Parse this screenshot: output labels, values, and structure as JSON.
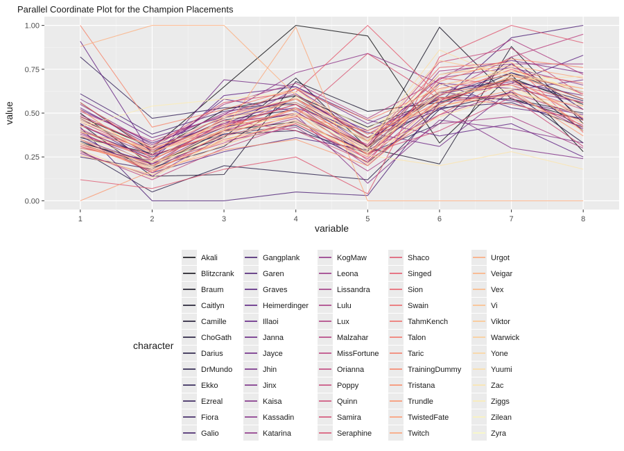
{
  "chart_data": {
    "type": "line",
    "subtype": "parallel-coordinates",
    "title": "Parallel Coordinate Plot for the Champion Placements",
    "xlabel": "variable",
    "ylabel": "value",
    "x": [
      1,
      2,
      3,
      4,
      5,
      6,
      7,
      8
    ],
    "ylim": [
      -0.05,
      1.05
    ],
    "y_ticks": [
      0.0,
      0.25,
      0.5,
      0.75,
      1.0
    ],
    "y_tick_labels": [
      "0.00",
      "0.25",
      "0.50",
      "0.75",
      "1.00"
    ],
    "grid": true,
    "legend_title": "character",
    "legend_position": "bottom",
    "legend_columns": 5,
    "colormap": "magma",
    "series": [
      {
        "name": "Akali",
        "values": [
          0.48,
          0.3,
          0.65,
          1.0,
          0.94,
          0.33,
          0.72,
          0.28
        ]
      },
      {
        "name": "Blitzcrank",
        "values": [
          0.36,
          0.27,
          0.52,
          0.6,
          0.42,
          0.58,
          0.7,
          0.55
        ]
      },
      {
        "name": "Braum",
        "values": [
          0.5,
          0.2,
          0.4,
          0.45,
          0.28,
          0.99,
          0.58,
          0.46
        ]
      },
      {
        "name": "Caitlyn",
        "values": [
          0.33,
          0.22,
          0.36,
          0.7,
          0.3,
          0.21,
          0.88,
          0.44
        ]
      },
      {
        "name": "Camille",
        "values": [
          0.44,
          0.14,
          0.15,
          0.68,
          0.51,
          0.56,
          0.7,
          0.4
        ]
      },
      {
        "name": "ChoGath",
        "values": [
          0.56,
          0.28,
          0.46,
          0.52,
          0.31,
          0.55,
          0.73,
          0.58
        ]
      },
      {
        "name": "Darius",
        "values": [
          0.34,
          0.19,
          0.31,
          0.6,
          0.36,
          0.59,
          0.58,
          0.5
        ]
      },
      {
        "name": "DrMundo",
        "values": [
          0.29,
          0.05,
          0.2,
          0.16,
          0.12,
          0.52,
          0.62,
          0.33
        ]
      },
      {
        "name": "Ekko",
        "values": [
          0.47,
          0.26,
          0.38,
          0.4,
          0.27,
          0.44,
          0.82,
          0.46
        ]
      },
      {
        "name": "Ezreal",
        "values": [
          0.82,
          0.47,
          0.53,
          0.55,
          0.34,
          0.62,
          0.69,
          0.57
        ]
      },
      {
        "name": "Fiora",
        "values": [
          0.25,
          0.18,
          0.38,
          0.43,
          0.22,
          0.53,
          0.56,
          0.42
        ]
      },
      {
        "name": "Galio",
        "values": [
          0.4,
          0.25,
          0.42,
          0.5,
          0.31,
          0.6,
          0.73,
          0.62
        ]
      },
      {
        "name": "Gangplank",
        "values": [
          0.61,
          0.38,
          0.51,
          0.56,
          0.36,
          0.52,
          0.78,
          0.52
        ]
      },
      {
        "name": "Garen",
        "values": [
          0.42,
          0.0,
          0.0,
          0.05,
          0.03,
          0.56,
          0.93,
          1.0
        ]
      },
      {
        "name": "Graves",
        "values": [
          0.37,
          0.16,
          0.28,
          0.36,
          0.29,
          0.67,
          0.53,
          0.47
        ]
      },
      {
        "name": "Heimerdinger",
        "values": [
          0.52,
          0.33,
          0.47,
          0.58,
          0.4,
          0.58,
          0.67,
          0.83
        ]
      },
      {
        "name": "Illaoi",
        "values": [
          0.44,
          0.23,
          0.6,
          0.65,
          0.46,
          0.37,
          0.44,
          0.25
        ]
      },
      {
        "name": "Janna",
        "values": [
          0.91,
          0.26,
          0.58,
          0.51,
          0.26,
          0.62,
          0.57,
          0.49
        ]
      },
      {
        "name": "Jayce",
        "values": [
          0.58,
          0.36,
          0.48,
          0.53,
          0.39,
          0.31,
          0.63,
          0.69
        ]
      },
      {
        "name": "Jhin",
        "values": [
          0.3,
          0.23,
          0.69,
          0.65,
          0.44,
          0.61,
          0.68,
          0.6
        ]
      },
      {
        "name": "Jinx",
        "values": [
          0.53,
          0.31,
          0.44,
          0.58,
          0.31,
          0.72,
          0.8,
          0.73
        ]
      },
      {
        "name": "Kaisa",
        "values": [
          0.35,
          0.21,
          0.41,
          0.64,
          0.38,
          0.53,
          0.3,
          0.24
        ]
      },
      {
        "name": "Kassadin",
        "values": [
          0.39,
          0.21,
          0.45,
          0.49,
          0.1,
          0.46,
          0.41,
          0.33
        ]
      },
      {
        "name": "Katarina",
        "values": [
          0.43,
          0.26,
          0.49,
          0.73,
          0.84,
          0.67,
          0.64,
          0.56
        ]
      },
      {
        "name": "KogMaw",
        "values": [
          0.55,
          0.32,
          0.5,
          0.61,
          0.35,
          0.7,
          0.76,
          0.66
        ]
      },
      {
        "name": "Leona",
        "values": [
          0.27,
          0.14,
          0.37,
          0.47,
          0.2,
          0.56,
          0.61,
          0.41
        ]
      },
      {
        "name": "Lissandra",
        "values": [
          0.46,
          0.29,
          0.43,
          0.55,
          0.26,
          0.74,
          0.78,
          0.78
        ]
      },
      {
        "name": "Lulu",
        "values": [
          0.32,
          0.21,
          0.34,
          0.42,
          0.17,
          0.44,
          0.48,
          0.3
        ]
      },
      {
        "name": "Lux",
        "values": [
          0.49,
          0.3,
          0.55,
          0.67,
          0.47,
          0.69,
          0.92,
          0.72
        ]
      },
      {
        "name": "Malzahar",
        "values": [
          0.38,
          0.24,
          0.4,
          0.52,
          0.29,
          0.49,
          0.62,
          0.48
        ]
      },
      {
        "name": "MissFortune",
        "values": [
          0.51,
          0.34,
          0.49,
          0.58,
          0.38,
          0.6,
          0.82,
          0.95
        ]
      },
      {
        "name": "Orianna",
        "values": [
          0.28,
          0.12,
          0.3,
          0.44,
          0.24,
          0.58,
          0.6,
          0.43
        ]
      },
      {
        "name": "Poppy",
        "values": [
          0.41,
          0.23,
          0.44,
          0.5,
          0.32,
          0.79,
          0.87,
          0.6
        ]
      },
      {
        "name": "Quinn",
        "values": [
          0.31,
          0.2,
          0.33,
          0.46,
          0.27,
          0.4,
          0.59,
          0.31
        ]
      },
      {
        "name": "Samira",
        "values": [
          0.45,
          0.27,
          0.46,
          0.4,
          0.22,
          0.7,
          0.66,
          0.52
        ]
      },
      {
        "name": "Seraphine",
        "values": [
          0.35,
          0.16,
          0.39,
          0.48,
          0.84,
          0.58,
          0.67,
          0.56
        ]
      },
      {
        "name": "Shaco",
        "values": [
          0.12,
          0.07,
          0.18,
          0.25,
          0.04,
          0.82,
          1.0,
          0.9
        ]
      },
      {
        "name": "Singed",
        "values": [
          0.48,
          0.31,
          0.56,
          0.62,
          1.0,
          0.6,
          0.75,
          0.61
        ]
      },
      {
        "name": "Sion",
        "values": [
          0.37,
          0.26,
          0.39,
          0.53,
          0.23,
          0.49,
          0.7,
          0.47
        ]
      },
      {
        "name": "Swain",
        "values": [
          0.43,
          0.28,
          0.42,
          0.55,
          0.31,
          0.76,
          0.79,
          0.39
        ]
      },
      {
        "name": "TahmKench",
        "values": [
          0.31,
          0.19,
          0.48,
          0.58,
          0.36,
          0.59,
          0.55,
          0.46
        ]
      },
      {
        "name": "Talon",
        "values": [
          0.33,
          0.17,
          0.35,
          0.44,
          0.25,
          0.66,
          0.74,
          0.67
        ]
      },
      {
        "name": "Taric",
        "values": [
          0.56,
          0.29,
          0.48,
          0.64,
          0.34,
          0.57,
          0.69,
          0.42
        ]
      },
      {
        "name": "TrainingDummy",
        "values": [
          1.0,
          0.42,
          0.52,
          0.64,
          0.46,
          0.64,
          0.72,
          0.58
        ]
      },
      {
        "name": "Tristana",
        "values": [
          0.52,
          0.24,
          0.4,
          0.59,
          0.26,
          0.68,
          0.81,
          0.76
        ]
      },
      {
        "name": "Trundle",
        "values": [
          0.39,
          0.3,
          0.43,
          0.48,
          0.4,
          0.55,
          0.71,
          0.64
        ]
      },
      {
        "name": "TwistedFate",
        "values": [
          0.0,
          0.17,
          0.29,
          0.35,
          0.2,
          0.54,
          0.63,
          0.37
        ]
      },
      {
        "name": "Twitch",
        "values": [
          0.3,
          0.22,
          0.37,
          0.53,
          0.3,
          0.72,
          0.77,
          0.7
        ]
      },
      {
        "name": "Urgot",
        "values": [
          0.47,
          0.28,
          0.4,
          0.99,
          0.0,
          0.0,
          0.0,
          0.0
        ]
      },
      {
        "name": "Veigar",
        "values": [
          0.88,
          1.0,
          1.0,
          0.6,
          0.38,
          0.54,
          0.61,
          0.54
        ]
      },
      {
        "name": "Vex",
        "values": [
          0.32,
          0.18,
          0.34,
          0.5,
          0.21,
          0.58,
          0.7,
          0.48
        ]
      },
      {
        "name": "Vi",
        "values": [
          0.26,
          0.15,
          0.32,
          0.45,
          0.27,
          0.62,
          0.66,
          0.44
        ]
      },
      {
        "name": "Viktor",
        "values": [
          0.4,
          0.23,
          0.47,
          0.56,
          0.34,
          0.8,
          0.72,
          0.64
        ]
      },
      {
        "name": "Warwick",
        "values": [
          0.35,
          0.2,
          0.41,
          0.52,
          0.3,
          0.63,
          0.76,
          0.54
        ]
      },
      {
        "name": "Yone",
        "values": [
          0.29,
          0.13,
          0.36,
          0.49,
          0.28,
          0.48,
          0.61,
          0.4
        ]
      },
      {
        "name": "Yuumi",
        "values": [
          0.46,
          0.27,
          0.45,
          0.58,
          0.33,
          0.86,
          0.69,
          0.71
        ]
      },
      {
        "name": "Zac",
        "values": [
          0.37,
          0.22,
          0.34,
          0.46,
          0.26,
          0.2,
          0.28,
          0.18
        ]
      },
      {
        "name": "Ziggs",
        "values": [
          0.42,
          0.54,
          0.58,
          0.62,
          0.41,
          0.66,
          0.74,
          0.62
        ]
      },
      {
        "name": "Zilean",
        "values": [
          0.33,
          0.19,
          0.39,
          0.5,
          0.29,
          0.61,
          0.64,
          0.48
        ]
      },
      {
        "name": "Zyra",
        "values": [
          0.45,
          0.31,
          0.48,
          0.59,
          0.35,
          0.72,
          0.79,
          0.6
        ]
      }
    ]
  }
}
